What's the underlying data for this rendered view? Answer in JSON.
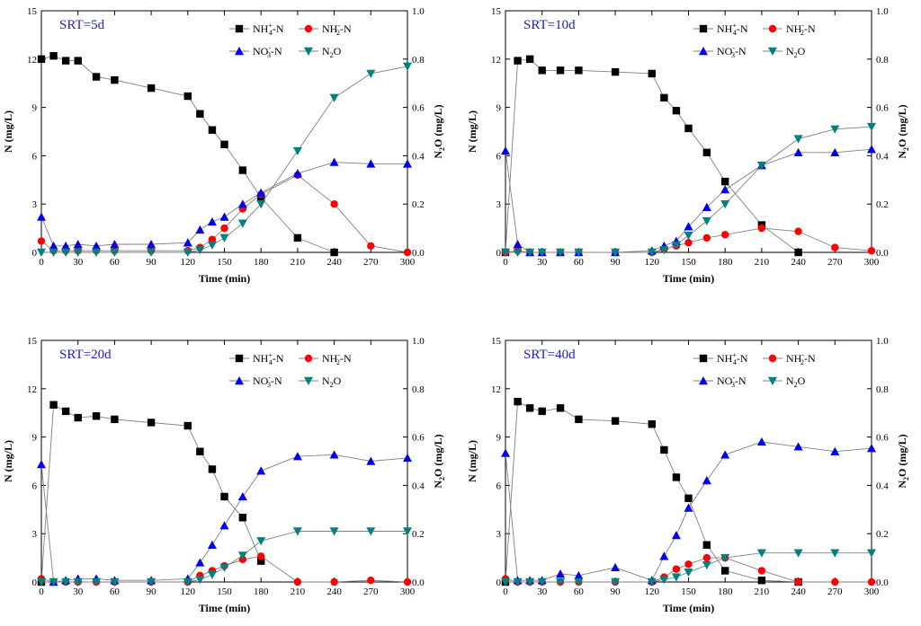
{
  "chart_data": [
    {
      "type": "line",
      "title": "SRT=5d",
      "xlabel": "Time (min)",
      "ylabel": "N (mg/L)",
      "y2label": "N2O (mg/L)",
      "xlim": [
        0,
        300
      ],
      "ylim": [
        0,
        15
      ],
      "y2lim": [
        0,
        1.0
      ],
      "xticks": [
        0,
        30,
        60,
        90,
        120,
        150,
        180,
        210,
        240,
        270,
        300
      ],
      "yticks": [
        0,
        3,
        6,
        9,
        12,
        15
      ],
      "y2ticks": [
        0.0,
        0.2,
        0.4,
        0.6,
        0.8,
        1.0
      ],
      "series": [
        {
          "name": "NH4+-N",
          "axis": "left",
          "x": [
            0,
            10,
            20,
            30,
            45,
            60,
            90,
            120,
            130,
            140,
            150,
            165,
            180,
            210,
            240
          ],
          "y": [
            12.0,
            12.2,
            11.9,
            11.9,
            10.9,
            10.7,
            10.2,
            9.7,
            8.6,
            7.6,
            6.7,
            5.1,
            3.4,
            0.9,
            0.0
          ]
        },
        {
          "name": "NH2-N",
          "axis": "left",
          "x": [
            0,
            10,
            20,
            30,
            45,
            60,
            90,
            120,
            130,
            140,
            150,
            165,
            180,
            210,
            240,
            270,
            300
          ],
          "y": [
            0.7,
            0.1,
            0.1,
            0.1,
            0.1,
            0.1,
            0.1,
            0.1,
            0.3,
            0.8,
            1.5,
            2.7,
            3.6,
            4.8,
            3.0,
            0.4,
            0.0
          ]
        },
        {
          "name": "NO3--N",
          "axis": "left",
          "x": [
            0,
            10,
            20,
            30,
            45,
            60,
            90,
            120,
            130,
            140,
            150,
            165,
            180,
            210,
            240,
            270,
            300
          ],
          "y": [
            2.2,
            0.4,
            0.4,
            0.5,
            0.4,
            0.5,
            0.5,
            0.6,
            1.4,
            1.9,
            2.2,
            3.0,
            3.7,
            4.9,
            5.6,
            5.5,
            5.5
          ]
        },
        {
          "name": "N2O",
          "axis": "right",
          "x": [
            0,
            10,
            20,
            30,
            45,
            60,
            90,
            120,
            130,
            140,
            150,
            165,
            180,
            210,
            240,
            270,
            300
          ],
          "y": [
            0.0,
            0.0,
            0.0,
            0.0,
            0.0,
            0.0,
            0.0,
            0.0,
            0.01,
            0.03,
            0.06,
            0.12,
            0.2,
            0.42,
            0.64,
            0.74,
            0.77
          ]
        }
      ]
    },
    {
      "type": "line",
      "title": "SRT=10d",
      "xlabel": "Time (min)",
      "ylabel": "N (mg/L)",
      "y2label": "N2O (mg/L)",
      "xlim": [
        0,
        300
      ],
      "ylim": [
        0,
        15
      ],
      "y2lim": [
        0,
        1.0
      ],
      "xticks": [
        0,
        30,
        60,
        90,
        120,
        150,
        180,
        210,
        240,
        270,
        300
      ],
      "yticks": [
        0,
        3,
        6,
        9,
        12,
        15
      ],
      "y2ticks": [
        0.0,
        0.2,
        0.4,
        0.6,
        0.8,
        1.0
      ],
      "series": [
        {
          "name": "NH4+-N",
          "axis": "left",
          "x": [
            0,
            10,
            20,
            30,
            45,
            60,
            90,
            120,
            130,
            140,
            150,
            165,
            180,
            210,
            240
          ],
          "y": [
            0.0,
            11.9,
            12.0,
            11.3,
            11.3,
            11.3,
            11.2,
            11.1,
            9.6,
            8.8,
            7.7,
            6.2,
            4.4,
            1.7,
            0.0
          ]
        },
        {
          "name": "NH2-N",
          "axis": "left",
          "x": [
            0,
            10,
            20,
            30,
            45,
            60,
            90,
            120,
            130,
            140,
            150,
            165,
            180,
            210,
            240,
            270,
            300
          ],
          "y": [
            0.0,
            0.1,
            0.0,
            0.0,
            0.0,
            0.0,
            0.0,
            0.0,
            0.2,
            0.4,
            0.6,
            0.9,
            1.1,
            1.5,
            1.3,
            0.3,
            0.1
          ]
        },
        {
          "name": "NO3--N",
          "axis": "left",
          "x": [
            0,
            10,
            20,
            30,
            45,
            60,
            90,
            120,
            130,
            140,
            150,
            165,
            180,
            210,
            240,
            270,
            300
          ],
          "y": [
            6.3,
            0.5,
            0.0,
            0.0,
            0.0,
            0.0,
            0.0,
            0.1,
            0.4,
            0.7,
            1.6,
            2.8,
            3.9,
            5.4,
            6.2,
            6.2,
            6.4
          ]
        },
        {
          "name": "N2O",
          "axis": "right",
          "x": [
            0,
            10,
            20,
            30,
            45,
            60,
            90,
            120,
            130,
            140,
            150,
            165,
            180,
            210,
            240,
            270,
            300
          ],
          "y": [
            0.0,
            0.0,
            0.0,
            0.0,
            0.0,
            0.0,
            0.0,
            0.0,
            0.01,
            0.03,
            0.07,
            0.13,
            0.2,
            0.36,
            0.47,
            0.51,
            0.52
          ]
        }
      ]
    },
    {
      "type": "line",
      "title": "SRT=20d",
      "xlabel": "Time (min)",
      "ylabel": "N (mg/L)",
      "y2label": "N2O (mg/L)",
      "xlim": [
        0,
        300
      ],
      "ylim": [
        0,
        15
      ],
      "y2lim": [
        0,
        1.0
      ],
      "xticks": [
        0,
        30,
        60,
        90,
        120,
        150,
        180,
        210,
        240,
        270,
        300
      ],
      "yticks": [
        0,
        3,
        6,
        9,
        12,
        15
      ],
      "y2ticks": [
        0.0,
        0.2,
        0.4,
        0.6,
        0.8,
        1.0
      ],
      "series": [
        {
          "name": "NH4+-N",
          "axis": "left",
          "x": [
            0,
            10,
            20,
            30,
            45,
            60,
            90,
            120,
            130,
            140,
            150,
            165,
            180
          ],
          "y": [
            0.0,
            11.0,
            10.6,
            10.2,
            10.3,
            10.1,
            9.9,
            9.7,
            8.1,
            7.0,
            5.3,
            4.0,
            1.3
          ]
        },
        {
          "name": "NH2-N",
          "axis": "left",
          "x": [
            0,
            10,
            20,
            30,
            45,
            60,
            90,
            120,
            130,
            140,
            150,
            165,
            180,
            210,
            240,
            270,
            300
          ],
          "y": [
            0.2,
            0.0,
            0.0,
            0.0,
            0.0,
            0.0,
            0.0,
            0.0,
            0.4,
            0.7,
            1.0,
            1.4,
            1.6,
            0.0,
            0.0,
            0.1,
            0.0
          ]
        },
        {
          "name": "NO3--N",
          "axis": "left",
          "x": [
            0,
            10,
            20,
            30,
            45,
            60,
            90,
            120,
            130,
            140,
            150,
            165,
            180,
            210,
            240,
            270,
            300
          ],
          "y": [
            7.3,
            0.0,
            0.1,
            0.2,
            0.2,
            0.1,
            0.1,
            0.2,
            1.2,
            2.3,
            3.5,
            5.3,
            6.9,
            7.8,
            7.9,
            7.5,
            7.7
          ]
        },
        {
          "name": "N2O",
          "axis": "right",
          "x": [
            0,
            10,
            20,
            30,
            45,
            60,
            90,
            120,
            130,
            140,
            150,
            165,
            180,
            210,
            240,
            270,
            300
          ],
          "y": [
            0.0,
            0.0,
            0.0,
            0.0,
            0.0,
            0.0,
            0.0,
            0.0,
            0.01,
            0.03,
            0.06,
            0.11,
            0.17,
            0.21,
            0.21,
            0.21,
            0.21
          ]
        }
      ]
    },
    {
      "type": "line",
      "title": "SRT=40d",
      "xlabel": "Time (min)",
      "ylabel": "N (mg/L)",
      "y2label": "N2O (mg/L)",
      "xlim": [
        0,
        300
      ],
      "ylim": [
        0,
        15
      ],
      "y2lim": [
        0,
        1.0
      ],
      "xticks": [
        0,
        30,
        60,
        90,
        120,
        150,
        180,
        210,
        240,
        270,
        300
      ],
      "yticks": [
        0,
        3,
        6,
        9,
        12,
        15
      ],
      "y2ticks": [
        0.0,
        0.2,
        0.4,
        0.6,
        0.8,
        1.0
      ],
      "series": [
        {
          "name": "NH4+-N",
          "axis": "left",
          "x": [
            0,
            10,
            20,
            30,
            45,
            60,
            90,
            120,
            130,
            140,
            150,
            165,
            180,
            210,
            240
          ],
          "y": [
            0.0,
            11.2,
            10.8,
            10.6,
            10.8,
            10.1,
            10.0,
            9.8,
            8.2,
            6.5,
            5.2,
            2.3,
            0.7,
            0.1,
            0.0
          ]
        },
        {
          "name": "NH2-N",
          "axis": "left",
          "x": [
            0,
            10,
            20,
            30,
            45,
            60,
            90,
            120,
            130,
            140,
            150,
            165,
            180,
            210,
            240,
            270,
            300
          ],
          "y": [
            0.2,
            0.0,
            0.0,
            0.0,
            0.0,
            0.0,
            0.0,
            0.0,
            0.3,
            0.8,
            1.1,
            1.5,
            1.5,
            0.7,
            0.0,
            0.0,
            0.0
          ]
        },
        {
          "name": "NO3--N",
          "axis": "left",
          "x": [
            0,
            10,
            20,
            30,
            45,
            60,
            90,
            120,
            130,
            140,
            150,
            165,
            180,
            210,
            240,
            270,
            300
          ],
          "y": [
            8.0,
            0.1,
            0.1,
            0.1,
            0.5,
            0.4,
            0.9,
            0.1,
            1.6,
            2.9,
            4.6,
            6.3,
            7.9,
            8.7,
            8.4,
            8.1,
            8.3
          ]
        },
        {
          "name": "N2O",
          "axis": "right",
          "x": [
            0,
            10,
            20,
            30,
            45,
            60,
            90,
            120,
            130,
            140,
            150,
            165,
            180,
            210,
            240,
            270,
            300
          ],
          "y": [
            0.0,
            0.0,
            0.0,
            0.0,
            0.0,
            0.0,
            0.0,
            0.0,
            0.01,
            0.02,
            0.04,
            0.07,
            0.1,
            0.12,
            0.12,
            0.12,
            0.12
          ]
        }
      ]
    }
  ],
  "legend": [
    {
      "key": "nh4",
      "base": "NH",
      "sub": "4",
      "sup": "+",
      "rest": "-N",
      "color": "#000000",
      "marker": "square"
    },
    {
      "key": "nh2",
      "base": "NH",
      "sub": "2",
      "sup": "-",
      "rest": "-N",
      "color": "#ff0000",
      "marker": "circle"
    },
    {
      "key": "no3",
      "base": "NO",
      "sub": "3",
      "sup": "-",
      "rest": "-N",
      "color": "#0000ee",
      "marker": "triangle-up"
    },
    {
      "key": "n2o",
      "base": "N",
      "sub": "2",
      "sup": "",
      "rest": "O",
      "color": "#008080",
      "marker": "triangle-down"
    }
  ],
  "colors": {
    "nh4": "#000000",
    "nh2": "#ff0000",
    "no3": "#0000ee",
    "n2o": "#008080",
    "line": "#808080",
    "title": "#2020c0"
  }
}
